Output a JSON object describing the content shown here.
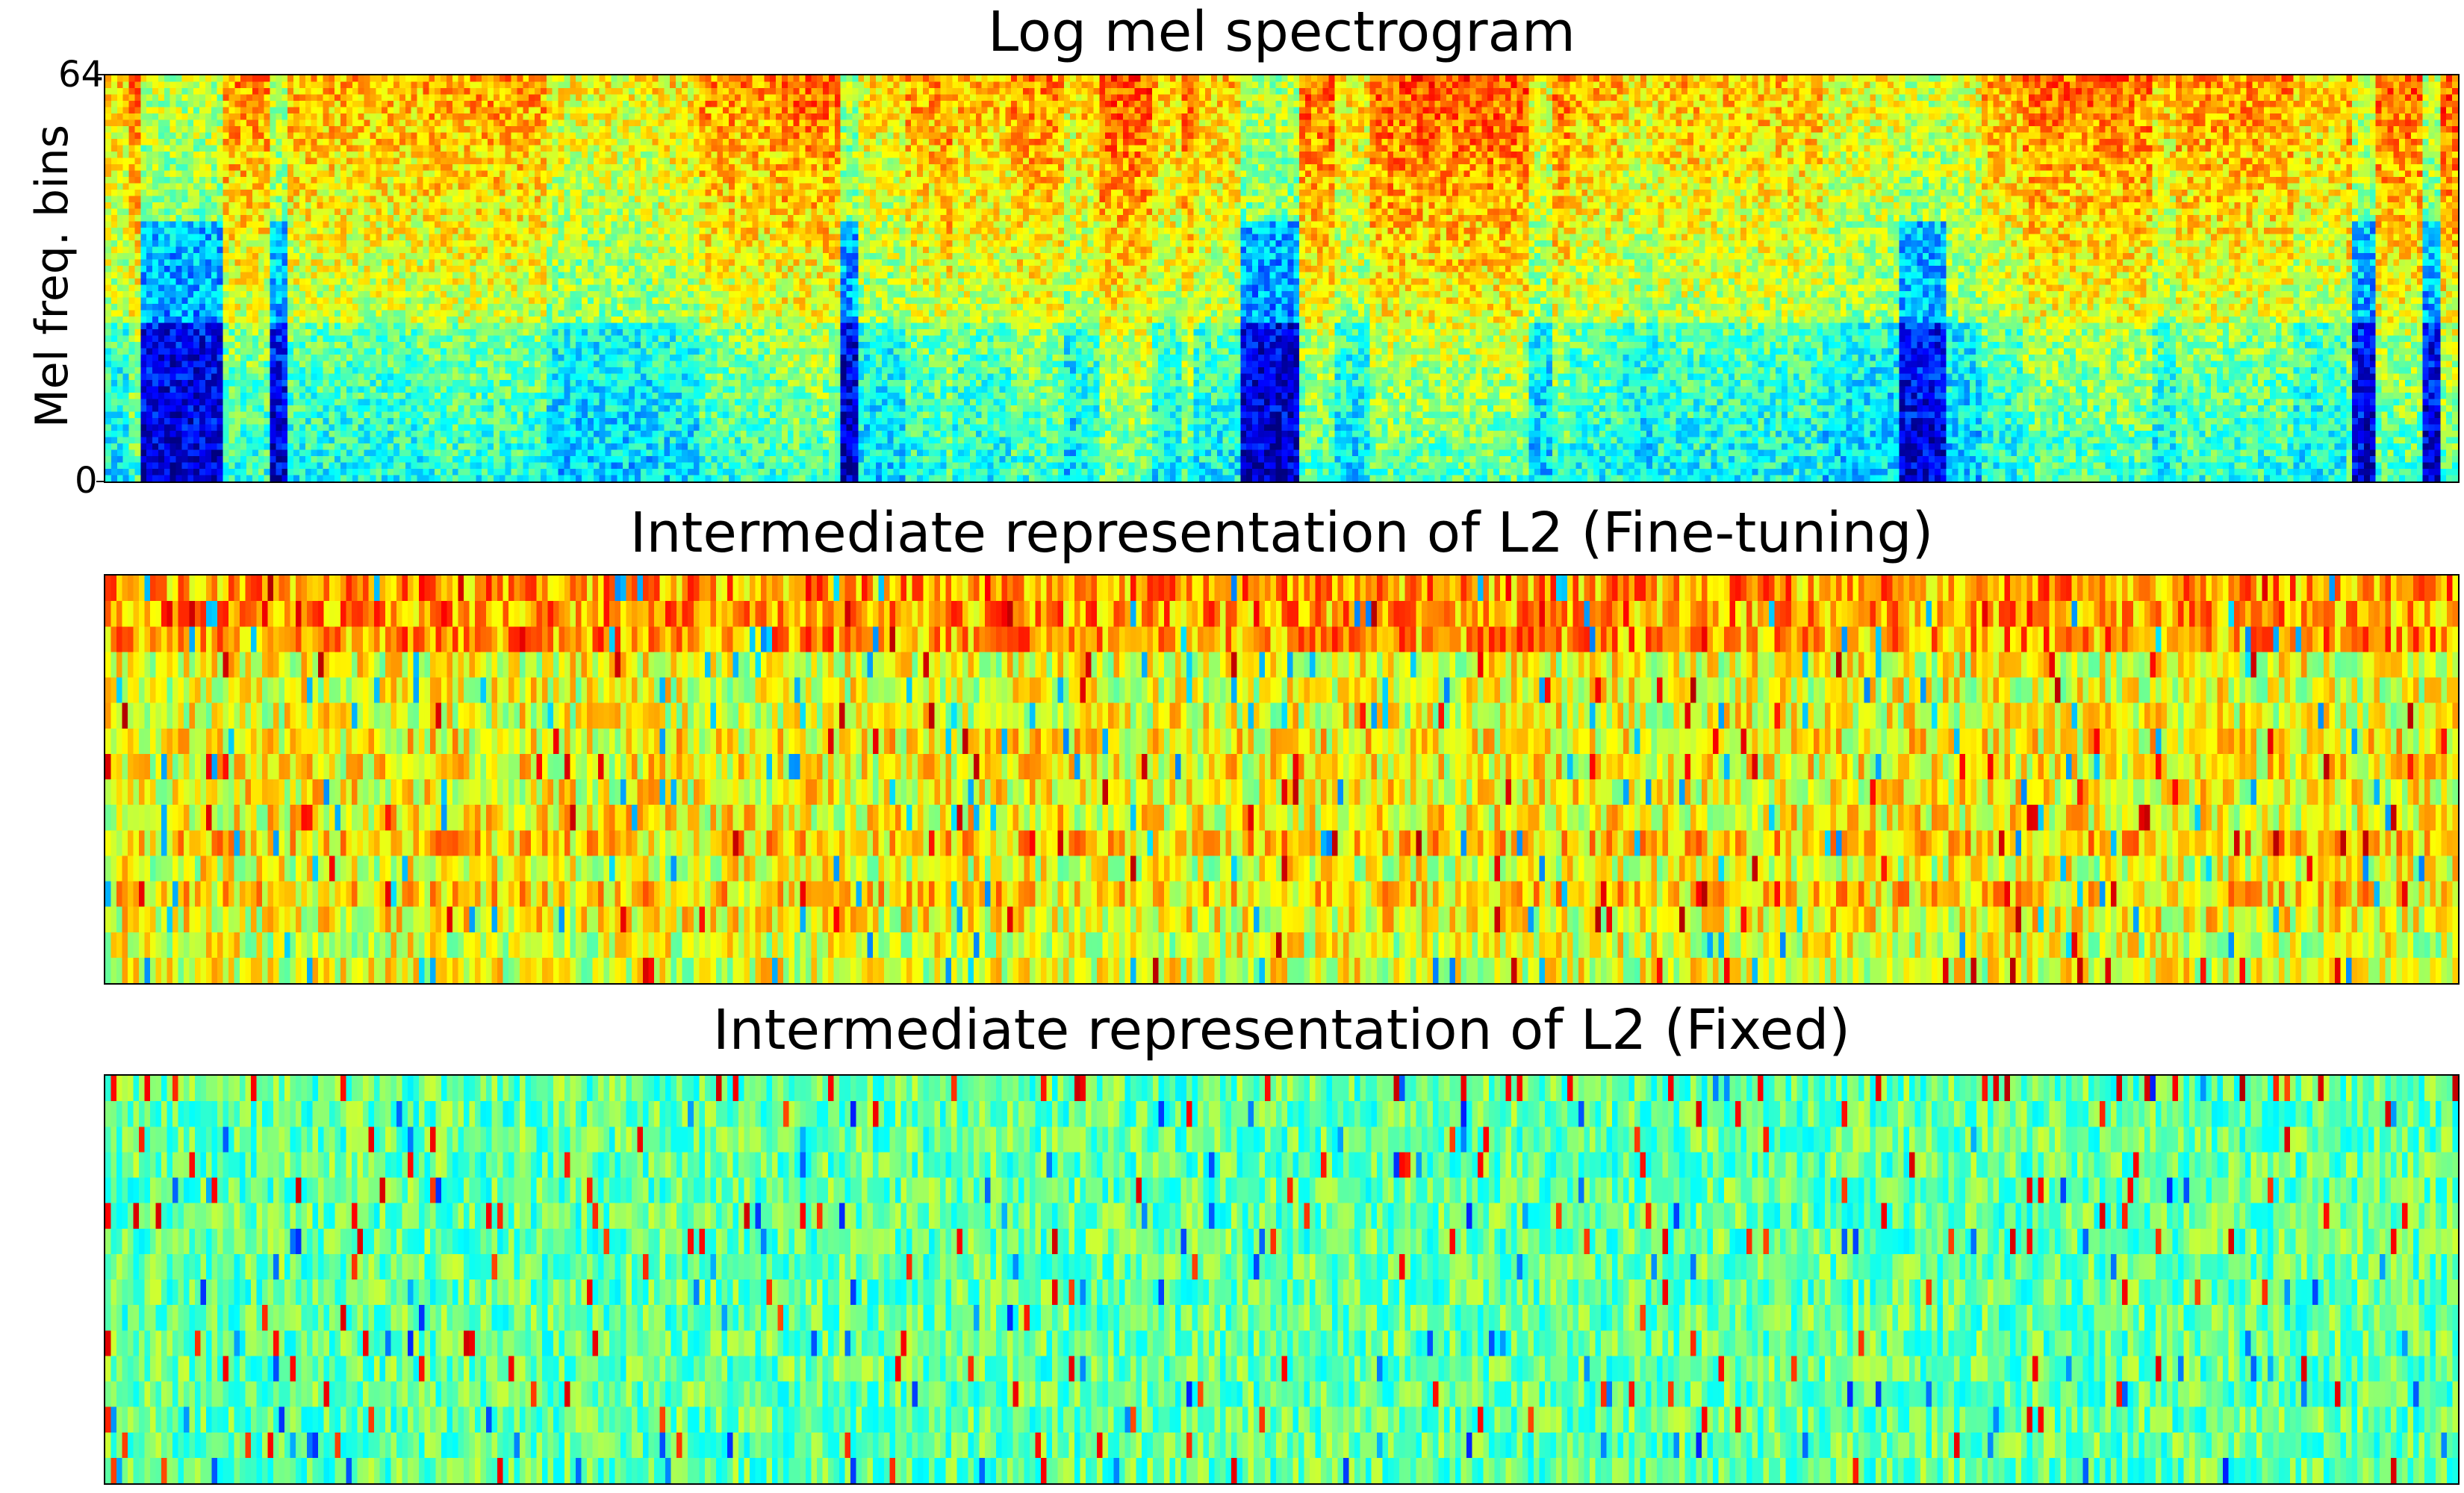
{
  "chart_data": [
    {
      "type": "heatmap",
      "title": "Log mel spectrogram",
      "ylabel": "Mel freq. bins",
      "yticks": [
        "64",
        "0"
      ],
      "ylim": [
        0,
        64
      ],
      "rows": 64,
      "colormap": "jet"
    },
    {
      "type": "heatmap",
      "title": "Intermediate representation of L2 (Fine-tuning)",
      "rows": 16,
      "colormap": "jet"
    },
    {
      "type": "heatmap",
      "title": "Intermediate representation of L2 (Fixed)",
      "rows": 16,
      "colormap": "jet"
    }
  ]
}
